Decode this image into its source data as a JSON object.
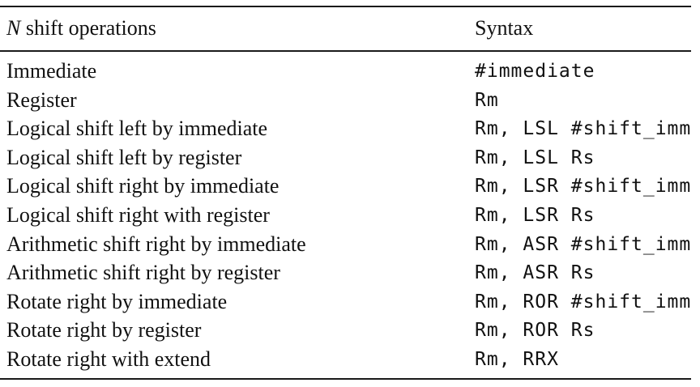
{
  "header": {
    "op_prefix": "N",
    "op_rest": " shift operations",
    "syntax": "Syntax"
  },
  "rows": [
    {
      "operation": "Immediate",
      "syntax": "#immediate"
    },
    {
      "operation": "Register",
      "syntax": "Rm"
    },
    {
      "operation": "Logical shift left by immediate",
      "syntax": "Rm, LSL #shift_imm"
    },
    {
      "operation": "Logical shift left by register",
      "syntax": "Rm, LSL Rs"
    },
    {
      "operation": "Logical shift right by immediate",
      "syntax": "Rm, LSR #shift_imm"
    },
    {
      "operation": "Logical shift right with register",
      "syntax": "Rm, LSR Rs"
    },
    {
      "operation": "Arithmetic shift right by immediate",
      "syntax": "Rm, ASR #shift_imm"
    },
    {
      "operation": "Arithmetic shift right by register",
      "syntax": "Rm, ASR Rs"
    },
    {
      "operation": "Rotate right by immediate",
      "syntax": "Rm, ROR #shift_imm"
    },
    {
      "operation": "Rotate right by register",
      "syntax": "Rm, ROR Rs"
    },
    {
      "operation": "Rotate right with extend",
      "syntax": "Rm, RRX"
    }
  ]
}
